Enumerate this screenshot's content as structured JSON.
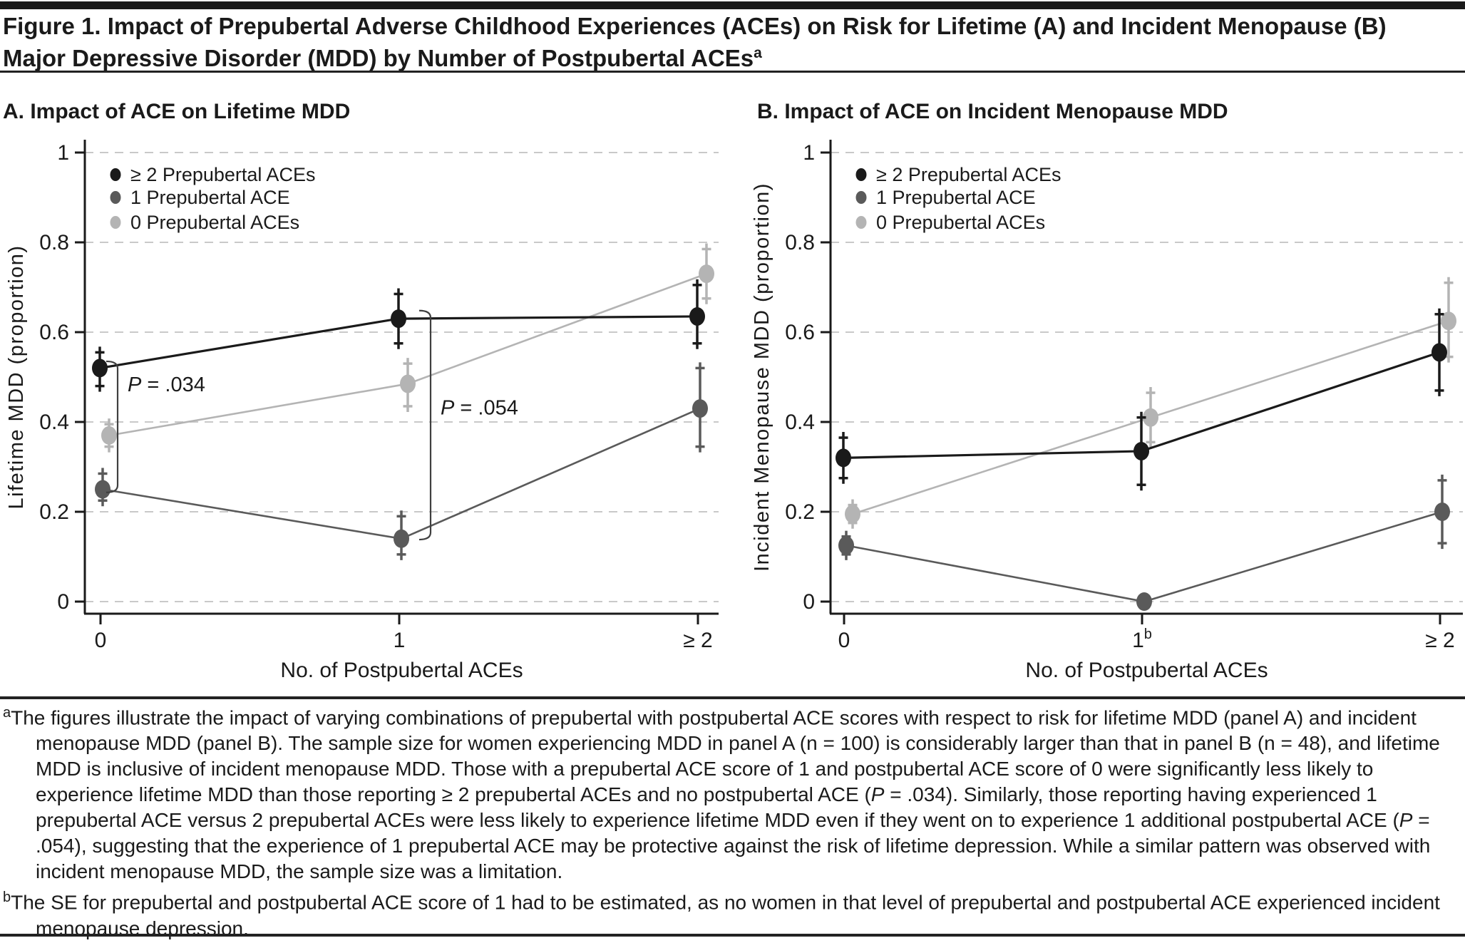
{
  "header": {
    "title_line1": "Figure 1. Impact of Prepubertal Adverse Childhood Experiences (ACEs) on Risk for Lifetime (A) and Incident Menopause (B)",
    "title_line2": "Major Depressive Disorder (MDD) by Number of Postpubertal ACEs",
    "title_superscript": "a"
  },
  "colors": {
    "ge2_aces": "#1a1a1a",
    "one_ace": "#5a5a5a",
    "zero_aces": "#b4b4b4",
    "gridline": "#c9c9c9",
    "axis": "#1a1a1a",
    "bracket": "#3f3f3f"
  },
  "chart_data": [
    {
      "panel": "A",
      "type": "line",
      "title": "A. Impact of ACE on Lifetime MDD",
      "ylabel": "Lifetime MDD (proportion)",
      "xlabel": "No. of Postpubertal ACEs",
      "ylim": [
        0,
        1
      ],
      "grid": "dashed-horizontal",
      "legend_position": "top-left-inside",
      "yticks": [
        {
          "value": 0,
          "label": "0"
        },
        {
          "value": 0.2,
          "label": "0.2"
        },
        {
          "value": 0.4,
          "label": "0.4"
        },
        {
          "value": 0.6,
          "label": "0.6"
        },
        {
          "value": 0.8,
          "label": "0.8"
        },
        {
          "value": 1,
          "label": "1"
        }
      ],
      "xticks": [
        {
          "label": "0",
          "sup": ""
        },
        {
          "label": "1",
          "sup": ""
        },
        {
          "label": "≥ 2",
          "sup": ""
        }
      ],
      "series": [
        {
          "name": "≥ 2 Prepubertal ACEs",
          "color": "#1a1a1a",
          "values": [
            0.52,
            0.63,
            0.635
          ],
          "ci_low": [
            0.48,
            0.575,
            0.575
          ],
          "ci_high": [
            0.555,
            0.685,
            0.705
          ]
        },
        {
          "name": "1 Prepubertal ACE",
          "color": "#5a5a5a",
          "values": [
            0.25,
            0.14,
            0.43
          ],
          "ci_low": [
            0.225,
            0.105,
            0.345
          ],
          "ci_high": [
            0.285,
            0.19,
            0.52
          ]
        },
        {
          "name": "0 Prepubertal ACEs",
          "color": "#b4b4b4",
          "values": [
            0.37,
            0.485,
            0.73
          ],
          "ci_low": [
            0.345,
            0.435,
            0.675
          ],
          "ci_high": [
            0.395,
            0.53,
            0.785
          ]
        }
      ],
      "annotations": [
        {
          "label_prefix": "P",
          "label_rest": " = .034",
          "x_index": 0,
          "top": 0.535,
          "bottom": 0.243,
          "label_v": 0.468,
          "dx": 24
        },
        {
          "label_prefix": "P",
          "label_rest": " = .054",
          "x_index": 1,
          "top": 0.648,
          "bottom": 0.138,
          "label_v": 0.417,
          "dx": 44
        }
      ]
    },
    {
      "panel": "B",
      "type": "line",
      "title": "B. Impact of ACE on Incident Menopause MDD",
      "ylabel": "Incident Menopause MDD (proportion)",
      "xlabel": "No. of Postpubertal ACEs",
      "ylim": [
        0,
        1
      ],
      "grid": "dashed-horizontal",
      "legend_position": "top-left-inside",
      "yticks": [
        {
          "value": 0,
          "label": "0"
        },
        {
          "value": 0.2,
          "label": "0.2"
        },
        {
          "value": 0.4,
          "label": "0.4"
        },
        {
          "value": 0.6,
          "label": "0.6"
        },
        {
          "value": 0.8,
          "label": "0.8"
        },
        {
          "value": 1,
          "label": "1"
        }
      ],
      "xticks": [
        {
          "label": "0",
          "sup": ""
        },
        {
          "label": "1",
          "sup": "b"
        },
        {
          "label": "≥ 2",
          "sup": ""
        }
      ],
      "series": [
        {
          "name": "≥ 2 Prepubertal ACEs",
          "color": "#1a1a1a",
          "values": [
            0.32,
            0.335,
            0.555
          ],
          "ci_low": [
            0.275,
            0.26,
            0.47
          ],
          "ci_high": [
            0.365,
            0.41,
            0.64
          ]
        },
        {
          "name": "1 Prepubertal ACE",
          "color": "#5a5a5a",
          "values": [
            0.125,
            0,
            0.2
          ],
          "ci_low": [
            0.105,
            0,
            0.13
          ],
          "ci_high": [
            0.145,
            0,
            0.27
          ]
        },
        {
          "name": "0 Prepubertal ACEs",
          "color": "#b4b4b4",
          "values": [
            0.195,
            0.41,
            0.625
          ],
          "ci_low": [
            0.175,
            0.355,
            0.545
          ],
          "ci_high": [
            0.215,
            0.465,
            0.71
          ]
        }
      ],
      "annotations": []
    }
  ],
  "footnotes": [
    {
      "marker": "a",
      "text": "The figures illustrate the impact of varying combinations of prepubertal with postpubertal ACE scores with respect to risk for lifetime MDD (panel A) and incident menopause MDD (panel B). The sample size for women experiencing MDD in panel A (n = 100) is considerably larger than that in panel B (n = 48), and lifetime MDD is inclusive of incident menopause MDD. Those with a prepubertal ACE score of 1 and postpubertal ACE score of 0 were significantly less likely to experience lifetime MDD than those reporting ≥ 2 prepubertal ACEs and no postpubertal ACE (P = .034). Similarly, those reporting having experienced 1 prepubertal ACE versus 2 prepubertal ACEs were less likely to experience lifetime MDD even if they went on to experience 1 additional postpubertal ACE (P = .054), suggesting that the experience of 1 prepubertal ACE may be protective against the risk of lifetime depression. While a similar pattern was observed with incident menopause MDD, the sample size was a limitation."
    },
    {
      "marker": "b",
      "text": "The SE for prepubertal and postpubertal ACE score of 1 had to be estimated, as no women in that level of prepubertal and postpubertal ACE experienced incident menopause depression."
    }
  ]
}
